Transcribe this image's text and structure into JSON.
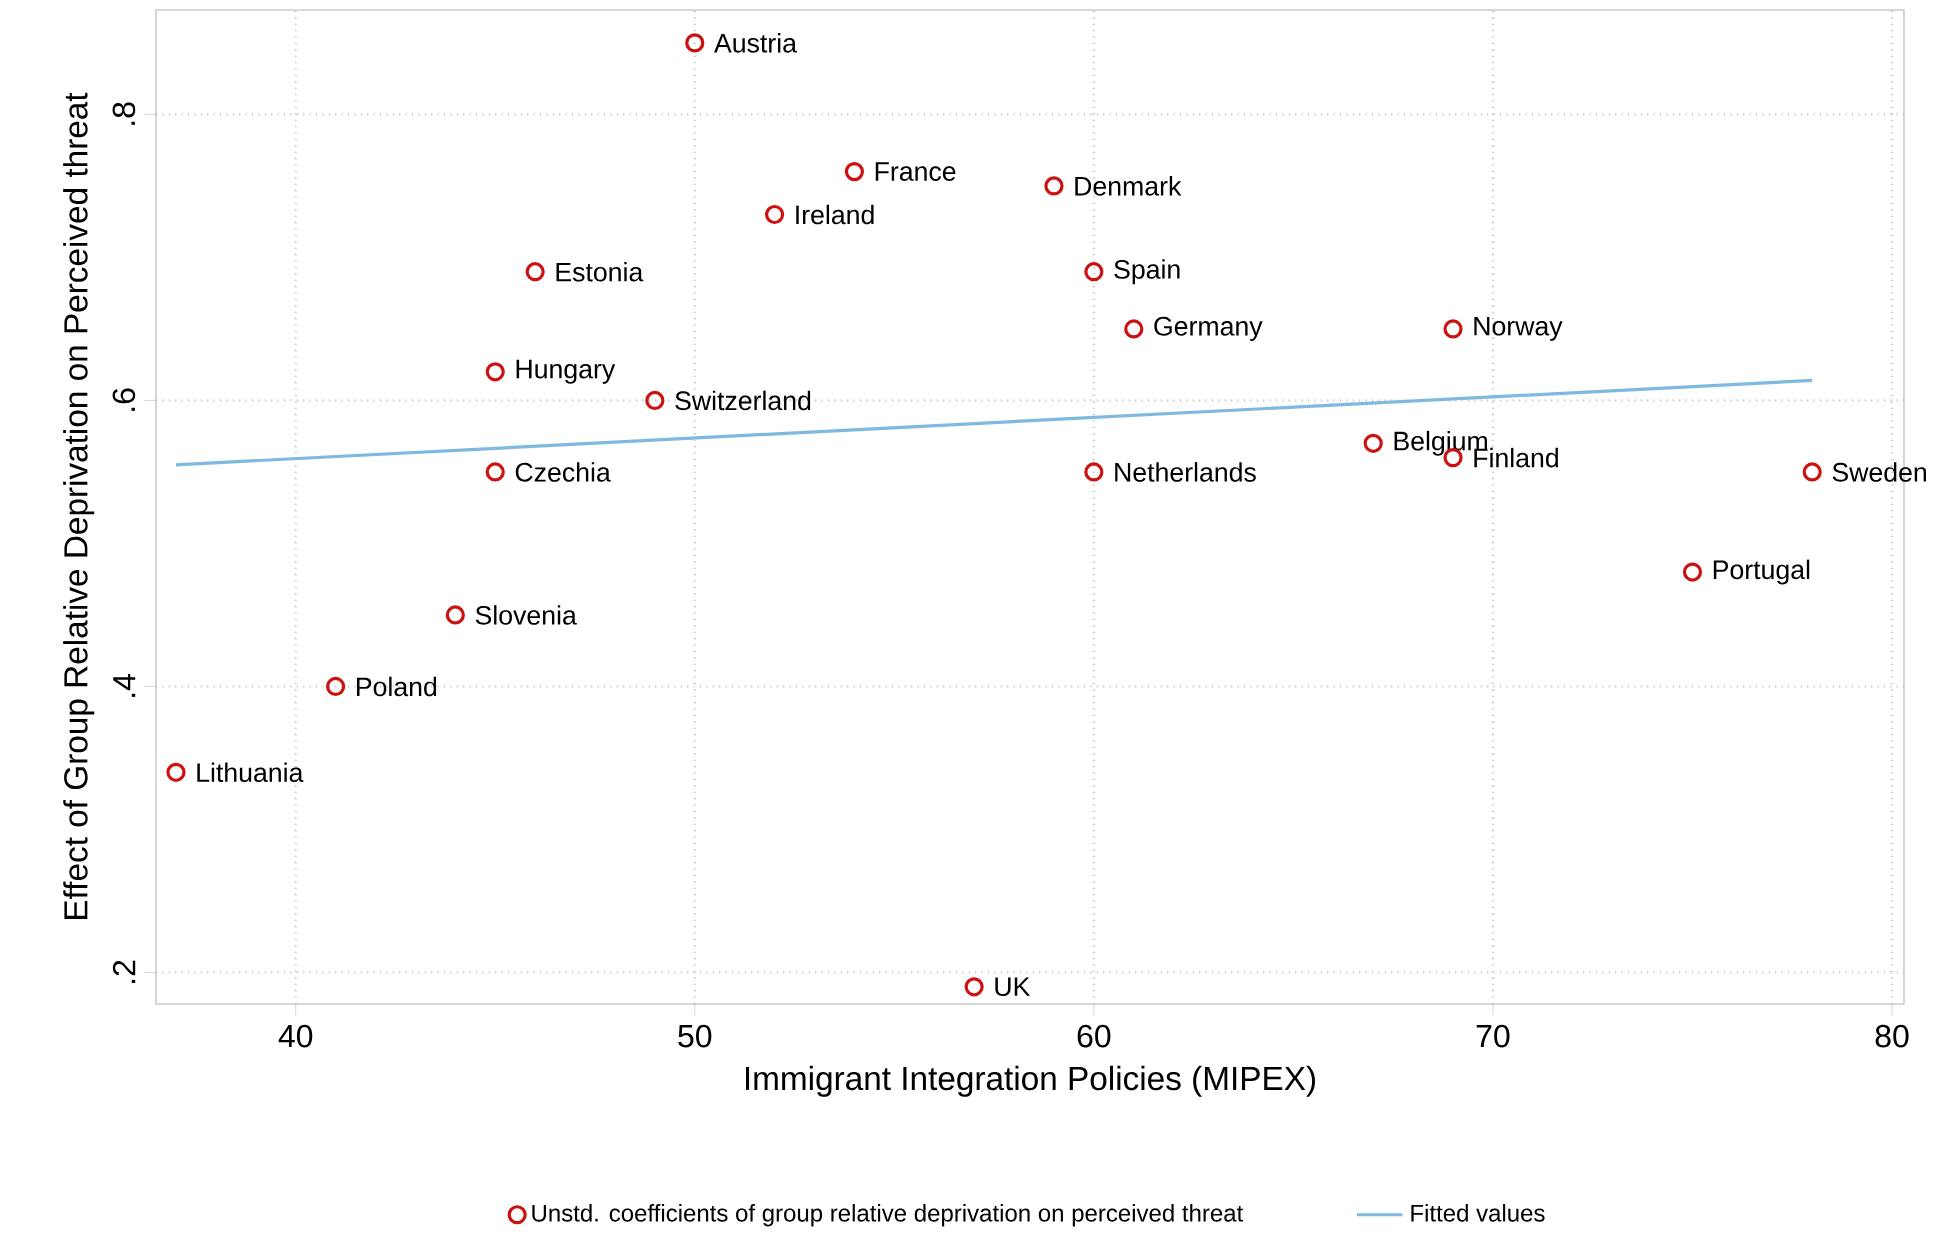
{
  "chart_data": {
    "type": "scatter",
    "xlabel": "Immigrant Integration Policies (MIPEX)",
    "ylabel": "Effect of Group Relative Deprivation on Perceived threat",
    "xlim": [
      36.5,
      80.3
    ],
    "ylim": [
      0.178,
      0.873
    ],
    "xticks": [
      40,
      50,
      60,
      70,
      80
    ],
    "yticks": [
      {
        "value": 0.2,
        "label": ".2"
      },
      {
        "value": 0.4,
        "label": ".4"
      },
      {
        "value": 0.6,
        "label": ".6"
      },
      {
        "value": 0.8,
        "label": ".8"
      }
    ],
    "grid": true,
    "legend": "bottom",
    "series": [
      {
        "name": "Unstd. coefficients of group relative deprivation on perceived threat",
        "marker": "circle",
        "color": "#cc1111",
        "x": [
          50,
          54,
          59,
          52,
          46,
          60,
          61,
          69,
          45,
          49,
          67,
          69,
          45,
          60,
          78,
          75,
          44,
          41,
          37,
          57
        ],
        "values": [
          0.85,
          0.76,
          0.75,
          0.73,
          0.69,
          0.69,
          0.65,
          0.65,
          0.62,
          0.6,
          0.57,
          0.56,
          0.55,
          0.55,
          0.55,
          0.48,
          0.45,
          0.4,
          0.34,
          0.19
        ]
      },
      {
        "name": "Fitted values",
        "type": "line",
        "color": "#7fb8e0",
        "x": [
          37,
          78
        ],
        "values": [
          0.555,
          0.614
        ]
      }
    ],
    "annotations": [
      {
        "text": "Austria",
        "x": 50,
        "y": 0.85
      },
      {
        "text": "France",
        "x": 54,
        "y": 0.76
      },
      {
        "text": "Denmark",
        "x": 59,
        "y": 0.75
      },
      {
        "text": "Ireland",
        "x": 52,
        "y": 0.73
      },
      {
        "text": "Estonia",
        "x": 46,
        "y": 0.69
      },
      {
        "text": "Spain",
        "x": 60,
        "y": 0.69
      },
      {
        "text": "Germany",
        "x": 61,
        "y": 0.65
      },
      {
        "text": "Norway",
        "x": 69,
        "y": 0.65
      },
      {
        "text": "Hungary",
        "x": 45,
        "y": 0.62
      },
      {
        "text": "Switzerland",
        "x": 49,
        "y": 0.6
      },
      {
        "text": "Belgium",
        "x": 67,
        "y": 0.57
      },
      {
        "text": "Finland",
        "x": 69,
        "y": 0.56
      },
      {
        "text": "Czechia",
        "x": 45,
        "y": 0.55
      },
      {
        "text": "Netherlands",
        "x": 60,
        "y": 0.55
      },
      {
        "text": "Sweden",
        "x": 78,
        "y": 0.55
      },
      {
        "text": "Portugal",
        "x": 75,
        "y": 0.48
      },
      {
        "text": "Slovenia",
        "x": 44,
        "y": 0.45
      },
      {
        "text": "Poland",
        "x": 41,
        "y": 0.4
      },
      {
        "text": "Lithuania",
        "x": 37,
        "y": 0.34
      },
      {
        "text": "UK",
        "x": 57,
        "y": 0.19
      }
    ]
  }
}
